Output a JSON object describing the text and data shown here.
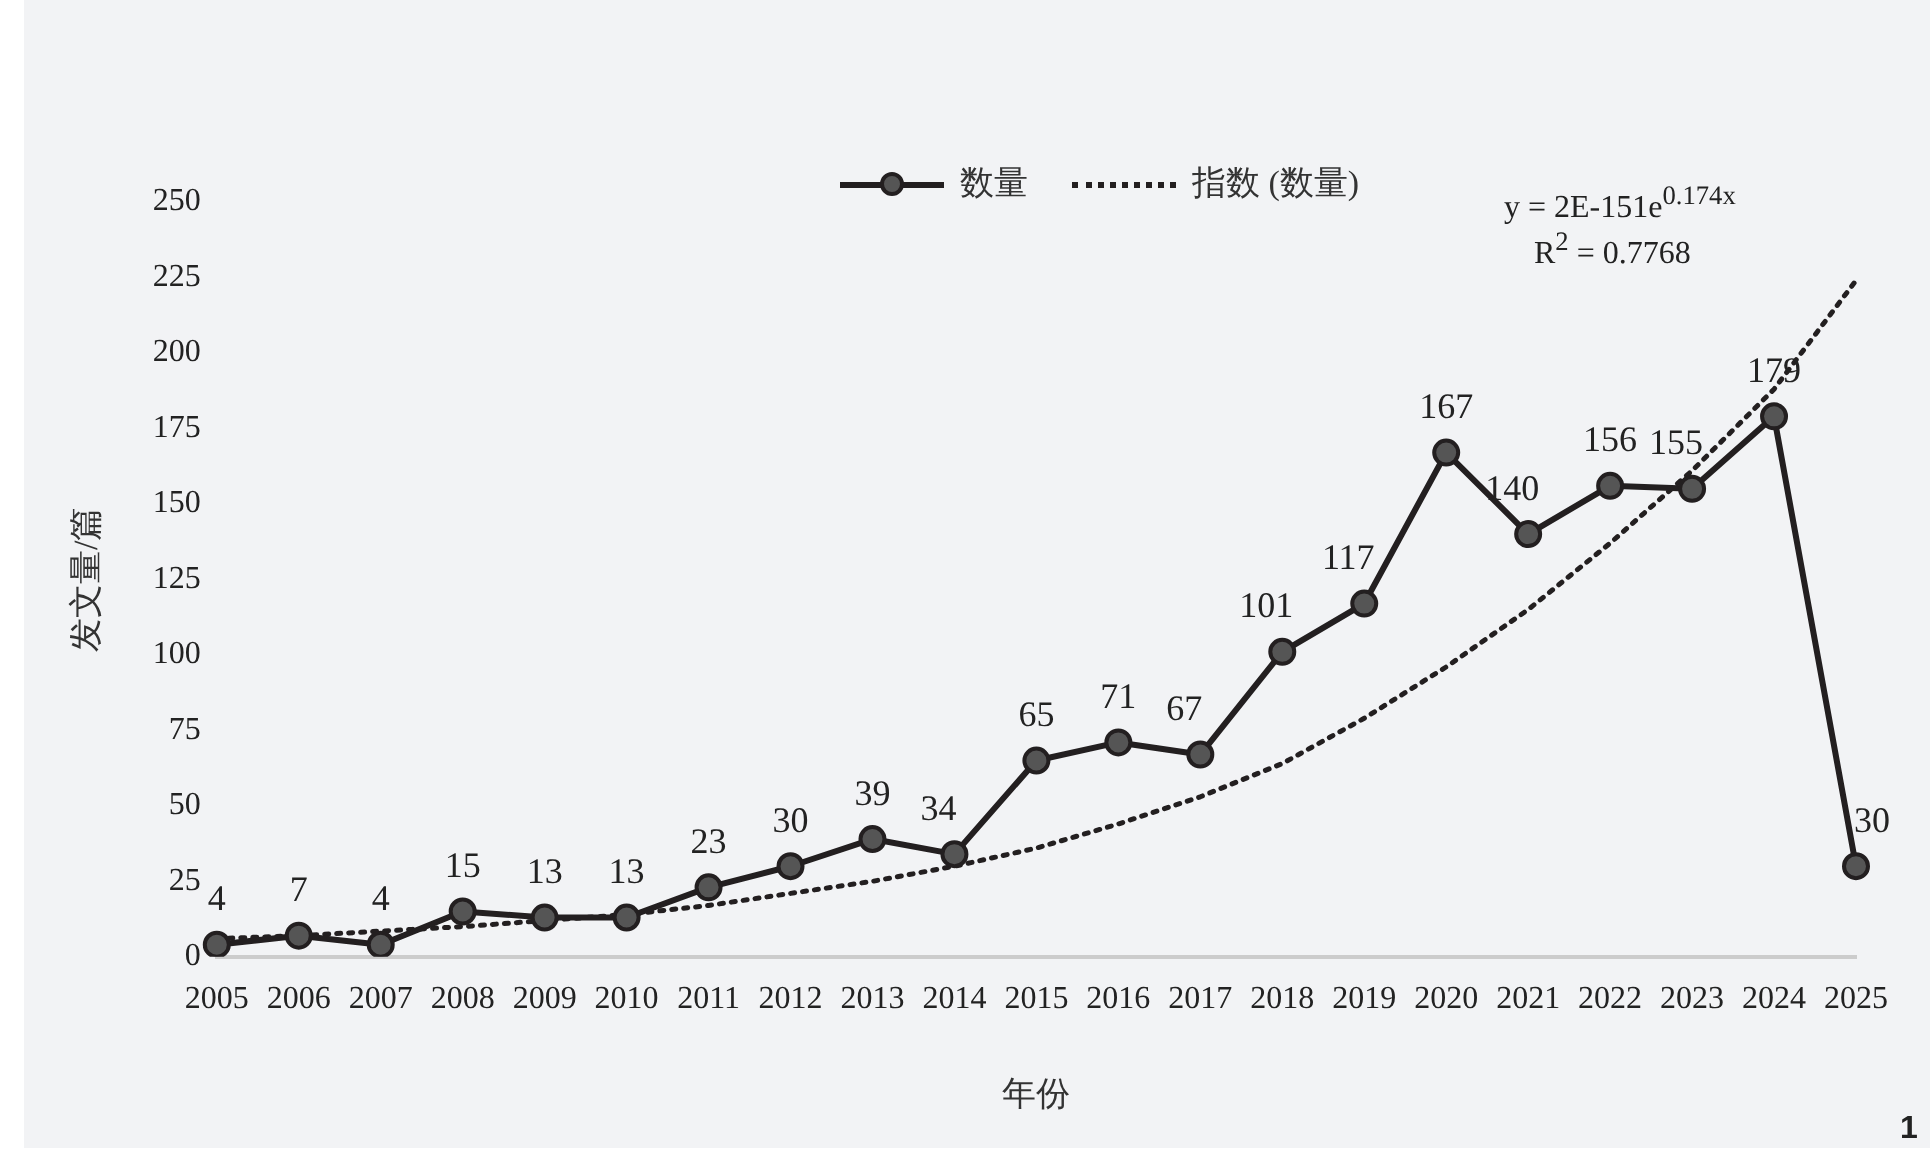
{
  "chart_data": {
    "type": "line",
    "xlabel": "年份",
    "ylabel": "发文量/篇",
    "categories": [
      "2005",
      "2006",
      "2007",
      "2008",
      "2009",
      "2010",
      "2011",
      "2012",
      "2013",
      "2014",
      "2015",
      "2016",
      "2017",
      "2018",
      "2019",
      "2020",
      "2021",
      "2022",
      "2023",
      "2024",
      "2025"
    ],
    "series": [
      {
        "name": "数量",
        "color": "#231f20",
        "marker": "circle",
        "line_style": "solid",
        "values": [
          4,
          7,
          4,
          15,
          13,
          13,
          23,
          30,
          39,
          34,
          65,
          71,
          67,
          101,
          117,
          167,
          140,
          156,
          155,
          179,
          30
        ],
        "value_labels": [
          "4",
          "7",
          "4",
          "15",
          "13",
          "13",
          "23",
          "30",
          "39",
          "34",
          "65",
          "71",
          "67",
          "101",
          "117",
          "167",
          "140",
          "156",
          "155",
          "179",
          "30"
        ]
      },
      {
        "name": "指数 (数量)",
        "color": "#231f20",
        "marker": "none",
        "line_style": "dotted",
        "values": [
          6,
          7,
          8.5,
          10,
          12,
          14,
          17,
          21,
          25,
          30,
          36,
          44,
          53,
          64,
          79,
          96,
          115,
          137,
          161,
          188,
          224
        ]
      }
    ],
    "ylim": [
      0,
      250
    ],
    "yticks": [
      0,
      25,
      50,
      75,
      100,
      125,
      150,
      175,
      200,
      225,
      250
    ],
    "grid": false,
    "legend": "top",
    "annotations": [
      "y = 2E-151e$^{0.174x}$",
      "R$^{2}$ = 0.7768",
      "1"
    ]
  }
}
